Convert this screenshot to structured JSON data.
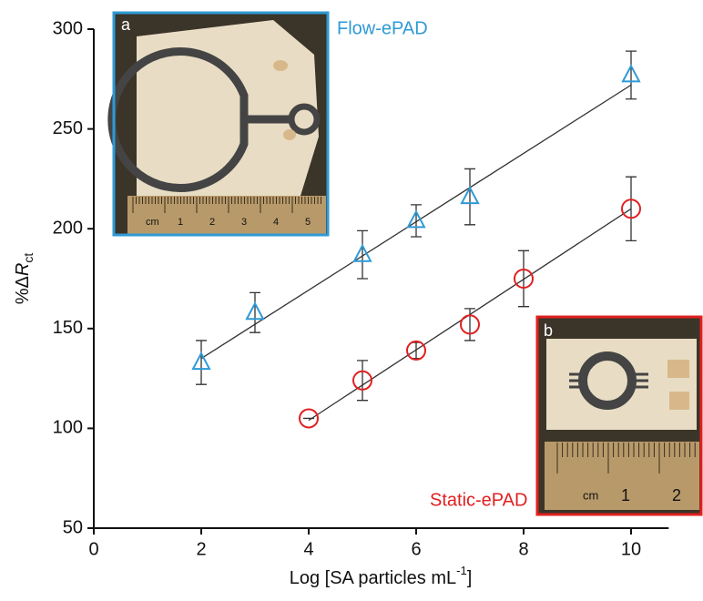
{
  "chart_data": {
    "type": "scatter",
    "x_label": {
      "text": "Log [SA particles mL",
      "superscript": "-1",
      "suffix": "]"
    },
    "y_label": {
      "prefix": "%Δ",
      "symbol": "R",
      "subscript": "ct"
    },
    "xlim": [
      0,
      10.7
    ],
    "xticks": [
      0,
      2,
      4,
      6,
      8,
      10
    ],
    "ylim": [
      50,
      300
    ],
    "yticks": [
      50,
      100,
      150,
      200,
      250,
      300
    ],
    "series": [
      {
        "name": "Flow-ePAD",
        "color": "#2e9ad6",
        "marker": "triangle",
        "x": [
          2,
          3,
          5,
          6,
          7,
          10
        ],
        "values": [
          133,
          158,
          187,
          204,
          216,
          277
        ],
        "errors": [
          11,
          10,
          12,
          8,
          14,
          12
        ],
        "fit": {
          "x": [
            2,
            10
          ],
          "values": [
            135,
            272
          ]
        }
      },
      {
        "name": "Static-ePAD",
        "color": "#e02020",
        "marker": "circle",
        "x": [
          4,
          5,
          6,
          7,
          8,
          10
        ],
        "values": [
          105,
          124,
          139,
          152,
          175,
          210
        ],
        "errors": [
          0,
          10,
          4,
          8,
          14,
          16
        ],
        "fit": {
          "x": [
            4,
            10
          ],
          "values": [
            104,
            210
          ]
        }
      }
    ]
  },
  "insets": [
    {
      "label": "a",
      "border": "#2e9ad6",
      "ruler": [
        "cm",
        "1",
        "2",
        "3",
        "4",
        "5"
      ]
    },
    {
      "label": "b",
      "border": "#e02020",
      "ruler": [
        "cm",
        "1",
        "2"
      ]
    }
  ]
}
